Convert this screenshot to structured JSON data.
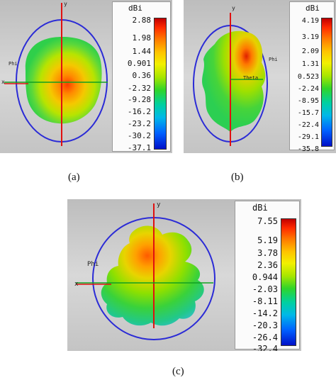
{
  "panels": [
    {
      "caption": "(a)",
      "scale": {
        "unit": "dBi",
        "ticks": [
          "2.88",
          "1.98",
          "1.44",
          "0.901",
          "0.36",
          "-2.32",
          "-9.28",
          "-16.2",
          "-23.2",
          "-30.2",
          "-37.1"
        ]
      },
      "axis_labels": {
        "y": "y",
        "x": "x",
        "phi": "Phi"
      }
    },
    {
      "caption": "(b)",
      "scale": {
        "unit": "dBi",
        "ticks": [
          "4.19",
          "3.19",
          "2.09",
          "1.31",
          "0.523",
          "-2.24",
          "-8.95",
          "-15.7",
          "-22.4",
          "-29.1",
          "-35.8"
        ]
      },
      "axis_labels": {
        "y": "y",
        "phi": "Phi",
        "theta": "Theta"
      }
    },
    {
      "caption": "(c)",
      "scale": {
        "unit": "dBi",
        "ticks": [
          "7.55",
          "5.19",
          "3.78",
          "2.36",
          "0.944",
          "-2.03",
          "-8.11",
          "-14.2",
          "-20.3",
          "-26.4",
          "-32.4"
        ]
      },
      "axis_labels": {
        "y": "y",
        "x": "x",
        "phi": "Phi"
      }
    }
  ],
  "colors": {
    "background": "#c9c9c9",
    "circle": "#2b2bd6",
    "axis_red": "#e01010",
    "axis_green": "#10a020"
  }
}
